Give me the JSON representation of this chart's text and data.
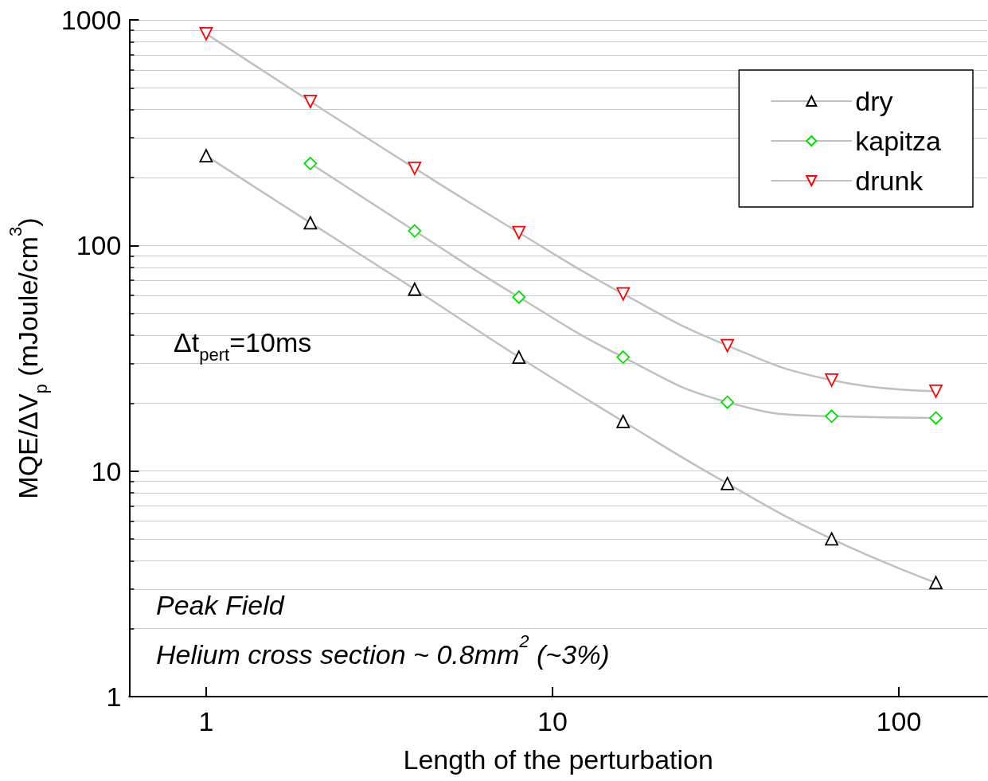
{
  "chart_data": {
    "type": "line",
    "xlabel": "Length of the perturbation",
    "ylabel": "MQE/ΔV$_{p}$ (mJoule/cm$^{3}$)",
    "x": [
      1,
      2,
      4,
      8,
      16,
      32,
      64,
      128
    ],
    "series": [
      {
        "name": "dry",
        "color": "#000000",
        "marker": "triangle",
        "values": [
          250,
          126,
          64,
          32,
          16.6,
          8.8,
          5.0,
          3.2
        ]
      },
      {
        "name": "kapitza",
        "color": "#00e000",
        "marker": "diamond",
        "values": [
          null,
          231,
          116,
          59,
          32,
          20.2,
          17.5,
          17.2
        ]
      },
      {
        "name": "drunk",
        "color": "#ff0000",
        "marker": "triangle-down",
        "values": [
          868,
          435,
          220,
          114,
          61,
          36,
          25.3,
          22.6
        ]
      }
    ],
    "log": "xy",
    "xlim": [
      0.6,
      180
    ],
    "xticks": [
      1,
      10,
      100
    ],
    "ylim": [
      1,
      1000
    ],
    "yticks": [
      1,
      10,
      100,
      1000
    ],
    "grid": "y",
    "legend": "top right",
    "annotations": [
      "Δt$_{pert}$=10ms",
      "Peak Field",
      "Helium cross section ~ 0.8mm$^{2}$ (~3%)"
    ]
  }
}
